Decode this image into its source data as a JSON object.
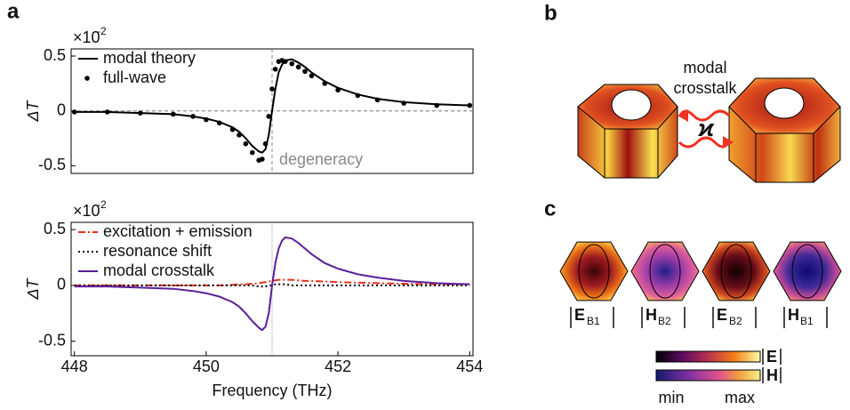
{
  "panel_labels": [
    "a",
    "b",
    "c"
  ],
  "chart_data": [
    {
      "type": "line",
      "y_label": "ΔT",
      "y_multiplier_base": "×10",
      "y_multiplier_exponent": "-2",
      "annotation": "degeneracy",
      "reference_x": 451,
      "x": [
        448,
        448.5,
        449,
        449.5,
        449.8,
        450,
        450.2,
        450.4,
        450.5,
        450.6,
        450.7,
        450.8,
        450.85,
        450.9,
        450.95,
        451,
        451.05,
        451.1,
        451.15,
        451.2,
        451.3,
        451.4,
        451.5,
        451.6,
        451.8,
        452,
        452.3,
        452.6,
        453,
        453.5,
        454
      ],
      "series": [
        {
          "name": "modal theory",
          "color": "#000000",
          "style": "solid",
          "values": [
            -0.01,
            -0.01,
            -0.02,
            -0.03,
            -0.05,
            -0.07,
            -0.1,
            -0.15,
            -0.19,
            -0.25,
            -0.32,
            -0.37,
            -0.38,
            -0.35,
            -0.22,
            0.0,
            0.2,
            0.35,
            0.42,
            0.46,
            0.47,
            0.44,
            0.4,
            0.35,
            0.27,
            0.21,
            0.15,
            0.11,
            0.08,
            0.06,
            0.05
          ]
        },
        {
          "name": "full-wave",
          "color": "#000000",
          "style": "dots",
          "values": [
            -0.01,
            -0.01,
            -0.02,
            -0.03,
            -0.05,
            -0.08,
            -0.11,
            -0.17,
            -0.22,
            -0.3,
            -0.38,
            -0.45,
            -0.44,
            -0.3,
            -0.05,
            0.2,
            0.38,
            0.45,
            0.46,
            0.45,
            0.43,
            0.4,
            0.36,
            0.32,
            0.25,
            0.19,
            0.14,
            0.1,
            0.07,
            0.05,
            0.05
          ]
        }
      ],
      "xlim": [
        447.95,
        454.05
      ],
      "ylim": [
        -0.57,
        0.565
      ],
      "yticks": [
        -0.5,
        0,
        0.5
      ]
    },
    {
      "type": "line",
      "y_label": "ΔT",
      "y_multiplier_base": "×10",
      "y_multiplier_exponent": "-2",
      "x_label": "Frequency (THz)",
      "reference_x": 451,
      "x": [
        448,
        448.5,
        449,
        449.5,
        449.8,
        450,
        450.2,
        450.4,
        450.5,
        450.6,
        450.7,
        450.8,
        450.85,
        450.9,
        450.95,
        451,
        451.05,
        451.1,
        451.15,
        451.2,
        451.3,
        451.4,
        451.5,
        451.6,
        451.8,
        452,
        452.3,
        452.6,
        453,
        453.5,
        454
      ],
      "series": [
        {
          "name": "excitation + emission",
          "color": "#e8301c",
          "style": "dashdot",
          "values": [
            0,
            0,
            0,
            0,
            0,
            0,
            0,
            0.005,
            0.01,
            0.01,
            0.015,
            0.02,
            0.025,
            0.03,
            0.035,
            0.04,
            0.045,
            0.05,
            0.05,
            0.05,
            0.05,
            0.045,
            0.04,
            0.04,
            0.035,
            0.03,
            0.025,
            0.02,
            0.015,
            0.01,
            0.01
          ]
        },
        {
          "name": "resonance shift",
          "color": "#000000",
          "style": "dotted",
          "values": [
            0,
            0,
            0,
            0,
            0,
            0,
            0,
            0,
            0,
            0,
            0,
            -0.01,
            -0.01,
            -0.01,
            0,
            0,
            0.01,
            0.01,
            0.01,
            0.01,
            0,
            0,
            0,
            0,
            0,
            0,
            0,
            0,
            0,
            0,
            0
          ]
        },
        {
          "name": "modal crosstalk",
          "color": "#5a1f9c",
          "style": "solid",
          "values": [
            -0.01,
            -0.01,
            -0.02,
            -0.03,
            -0.05,
            -0.07,
            -0.1,
            -0.15,
            -0.19,
            -0.25,
            -0.32,
            -0.38,
            -0.4,
            -0.37,
            -0.25,
            0,
            0.2,
            0.33,
            0.4,
            0.43,
            0.42,
            0.38,
            0.33,
            0.28,
            0.2,
            0.15,
            0.1,
            0.07,
            0.04,
            0.02,
            0.01
          ]
        }
      ],
      "xlim": [
        447.95,
        454.05
      ],
      "ylim": [
        -0.63,
        0.565
      ],
      "yticks": [
        -0.5,
        0,
        0.5
      ],
      "xticks": [
        448,
        450,
        452,
        454
      ]
    }
  ],
  "crosstalk_diagram": {
    "label_lines": [
      "modal",
      "crosstalk"
    ],
    "coupling_symbol": "ϰ"
  },
  "field_maps": [
    {
      "symbol": "E",
      "subscript": "B1"
    },
    {
      "symbol": "H",
      "subscript": "B2"
    },
    {
      "symbol": "E",
      "subscript": "B2"
    },
    {
      "symbol": "H",
      "subscript": "B1"
    }
  ],
  "colorbars": [
    {
      "symbol": "E"
    },
    {
      "symbol": "H"
    }
  ],
  "colorbar_range": [
    "min",
    "max"
  ]
}
